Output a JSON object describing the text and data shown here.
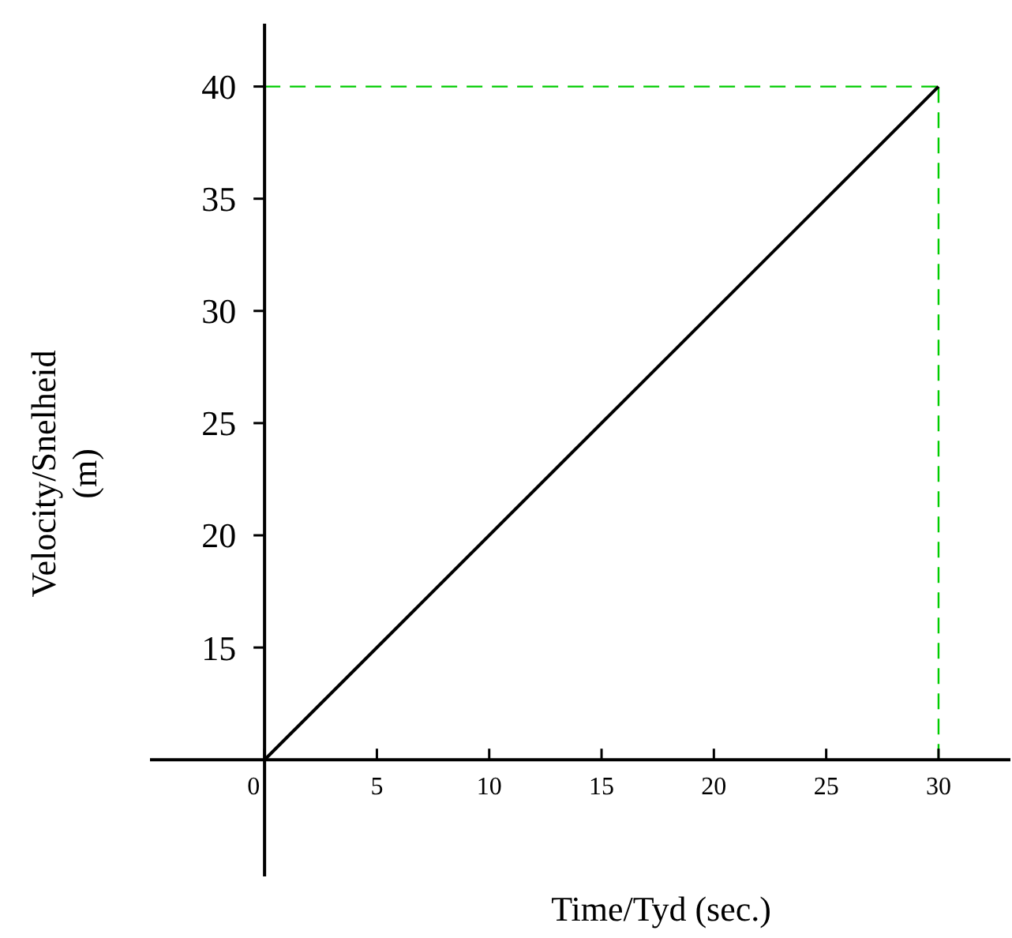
{
  "chart_data": {
    "type": "line",
    "xlabel": "Time/Tyd (sec.)",
    "ylabel": "Velocity/Snelheid (m)",
    "x": [
      0,
      30
    ],
    "series": [
      {
        "color": "#000000",
        "values": [
          10,
          40
        ]
      }
    ],
    "xlim": [
      -5.1,
      33.2
    ],
    "ylim": [
      4.8,
      42.8
    ],
    "xticks": [
      0,
      5,
      10,
      15,
      20,
      25,
      30
    ],
    "yticks": [
      15,
      20,
      25,
      30,
      35,
      40
    ],
    "ref_lines": [
      {
        "axis": "y",
        "value": 40,
        "color": "#00cc00",
        "line_style": "dashed"
      },
      {
        "axis": "x",
        "value": 30,
        "color": "#00cc00",
        "line_style": "dashed"
      }
    ],
    "grid": false,
    "marker": "none",
    "line_style": "solid"
  }
}
